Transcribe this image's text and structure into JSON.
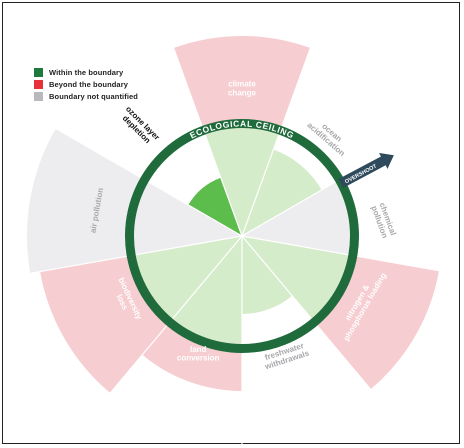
{
  "legend": [
    {
      "label": "Within the boundary",
      "color": "#1e7a3c"
    },
    {
      "label": "Beyond the boundary",
      "color": "#e8323a"
    },
    {
      "label": "Boundary not quantified",
      "color": "#b9b9bd"
    }
  ],
  "ring_label": "ECOLOGICAL CEILING",
  "overshoot_label": "OVERSHOOT",
  "colors": {
    "ring": "#1f6b3c",
    "within": "#d5ecca",
    "within_dark": "#5cbc4c",
    "beyond": "#f6cdd0",
    "unquantified": "#ededf0",
    "label_on_red": "#ffffff",
    "label_grey": "#a8a8ac",
    "arrow": "#2f4a5c"
  },
  "boundaries": [
    {
      "id": "climate-change",
      "lines": [
        "climate",
        "change"
      ],
      "status": "beyond"
    },
    {
      "id": "ocean-acidification",
      "lines": [
        "ocean",
        "acidification"
      ],
      "status": "within"
    },
    {
      "id": "chemical-pollution",
      "lines": [
        "chemical",
        "pollution"
      ],
      "status": "not-quantified"
    },
    {
      "id": "nitrogen-phosphorus",
      "lines": [
        "nitrogen &",
        "phosphorus loading"
      ],
      "status": "beyond"
    },
    {
      "id": "freshwater-withdrawals",
      "lines": [
        "freshwater",
        "withdrawals"
      ],
      "status": "within"
    },
    {
      "id": "land-conversion",
      "lines": [
        "land",
        "conversion"
      ],
      "status": "beyond"
    },
    {
      "id": "biodiversity-loss",
      "lines": [
        "biodiversity",
        "loss"
      ],
      "status": "beyond"
    },
    {
      "id": "air-pollution",
      "lines": [
        "air pollution"
      ],
      "status": "not-quantified"
    },
    {
      "id": "ozone-layer-depletion",
      "lines": [
        "ozone layer",
        "depletion"
      ],
      "status": "within"
    }
  ]
}
